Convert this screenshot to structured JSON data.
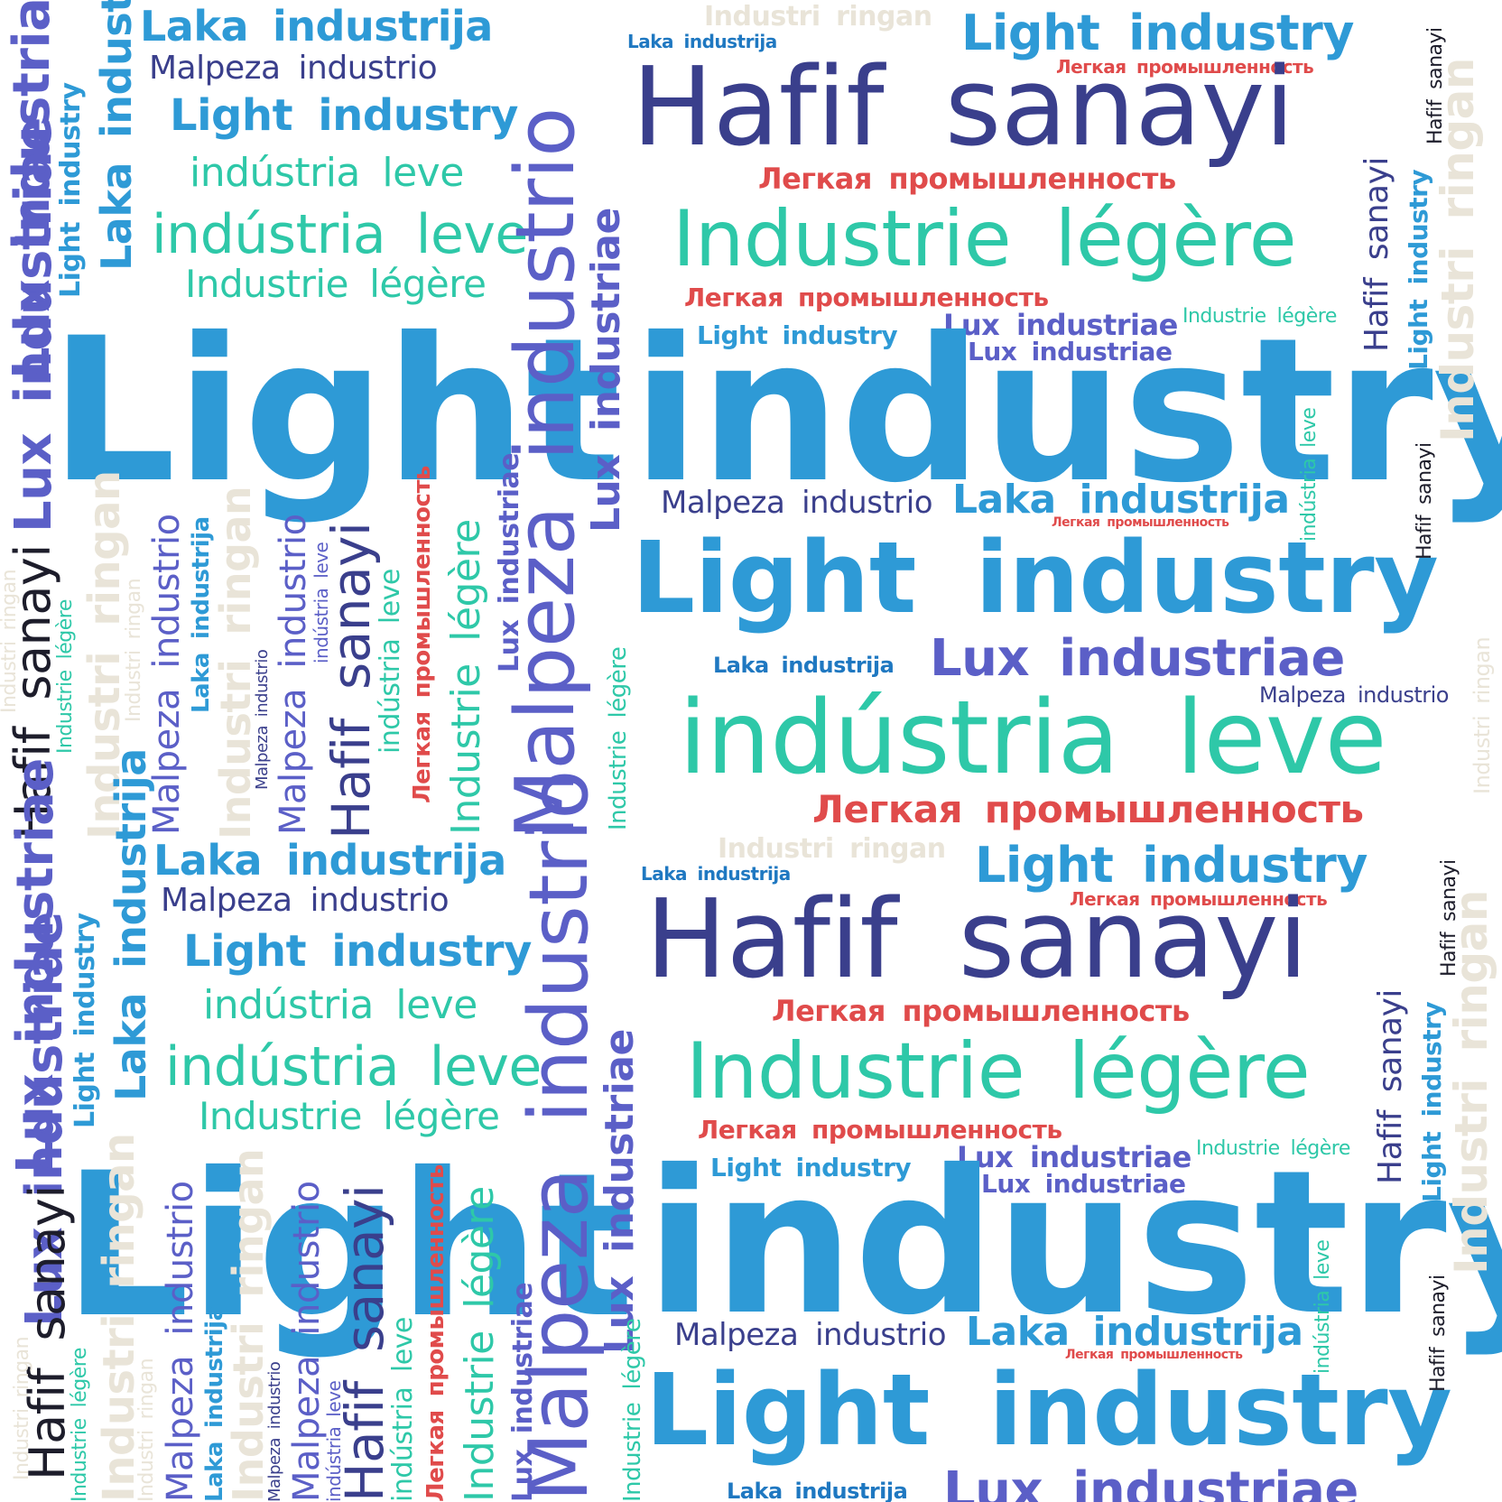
{
  "palette": {
    "blue": "#2e9ad6",
    "dark_blue": "#1f78c1",
    "purple": "#5b5fc7",
    "navy": "#3a3f8c",
    "teal": "#2ec8a8",
    "red": "#e04b4b",
    "beige": "#e9e4d8",
    "black": "#1d1d2b"
  },
  "words": {
    "light_industry": "Light industry",
    "light": "Light",
    "industry": "industry",
    "hafif_sanayi": "Hafif sanayi",
    "industrie_legere": "Industrie légère",
    "industria_leve": "indústria leve",
    "legkaya": "Легкая промышленность",
    "lux_industriae": "Lux industriae",
    "laka_industrija": "Laka industrija",
    "malpeza_industrio": "Malpeza industrio",
    "industri_ringan": "Industri ringan"
  }
}
